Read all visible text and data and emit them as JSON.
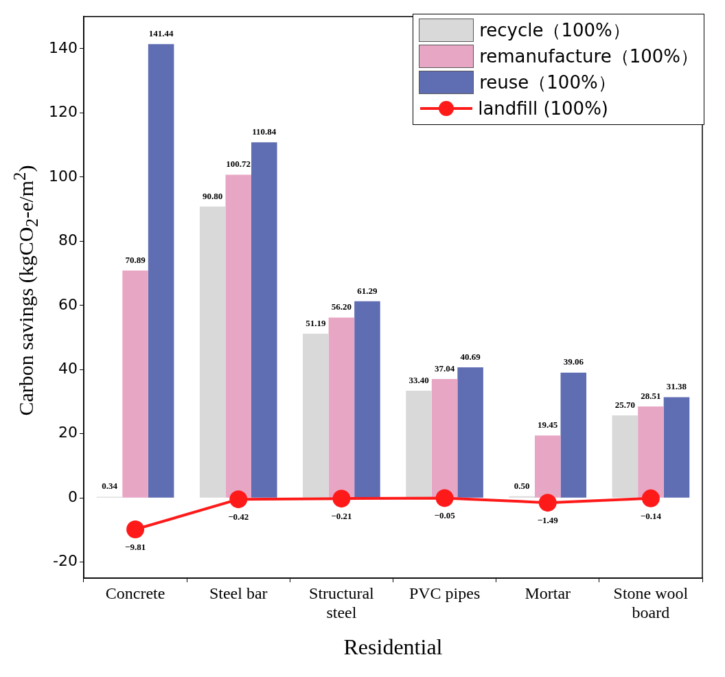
{
  "chart_data": {
    "type": "bar",
    "xlabel": "Residential",
    "ylabel": "Carbon savings (kgCO$_{2}$-e/m$^{2}$)",
    "categories": [
      "Concrete",
      "Steel bar",
      "Structural steel",
      "PVC pipes",
      "Mortar",
      "Stone wool board"
    ],
    "series": [
      {
        "name": "recycle（100%）",
        "color": "#d9d9d9",
        "values": [
          0.34,
          90.8,
          51.19,
          33.4,
          0.5,
          25.7
        ],
        "value_labels": [
          "0.34",
          "90.80",
          "51.19",
          "33.40",
          "0.50",
          "25.70"
        ]
      },
      {
        "name": "remanufacture（100%）",
        "color": "#e8a6c5",
        "values": [
          70.89,
          100.72,
          56.2,
          37.04,
          19.45,
          28.51
        ],
        "value_labels": [
          "70.89",
          "100.72",
          "56.20",
          "37.04",
          "19.45",
          "28.51"
        ]
      },
      {
        "name": "reuse（100%）",
        "color": "#5f6db3",
        "values": [
          141.44,
          110.84,
          61.29,
          40.69,
          39.06,
          31.38
        ],
        "value_labels": [
          "141.44",
          "110.84",
          "61.29",
          "40.69",
          "39.06",
          "31.38"
        ]
      },
      {
        "name": "landfill (100%)",
        "type": "line",
        "color": "#ff1a1a",
        "marker": "circle",
        "values": [
          -9.81,
          -0.42,
          -0.21,
          -0.05,
          -1.49,
          -0.14
        ],
        "value_labels": [
          "−9.81",
          "−0.42",
          "−0.21",
          "−0.05",
          "−1.49",
          "−0.14"
        ]
      }
    ],
    "ylim": [
      -25,
      150
    ],
    "yticks": [
      -20,
      0,
      20,
      40,
      60,
      80,
      100,
      120,
      140
    ],
    "grid": false,
    "legend": "top right"
  }
}
